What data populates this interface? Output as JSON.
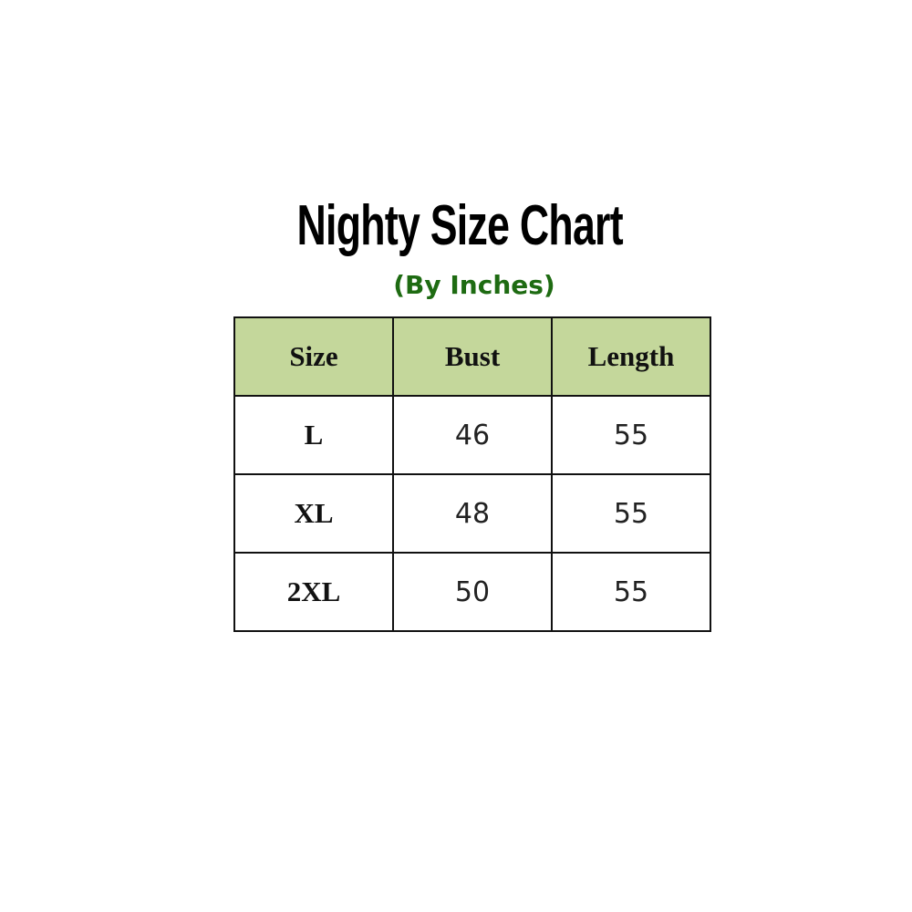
{
  "title": "Nighty Size Chart",
  "subtitle": "(By Inches)",
  "colors": {
    "header_bg": "#c4d79b",
    "subtitle": "#1e6b12"
  },
  "table": {
    "headers": [
      "Size",
      "Bust",
      "Length"
    ],
    "rows": [
      [
        "L",
        "46",
        "55"
      ],
      [
        "XL",
        "48",
        "55"
      ],
      [
        "2XL",
        "50",
        "55"
      ]
    ]
  }
}
